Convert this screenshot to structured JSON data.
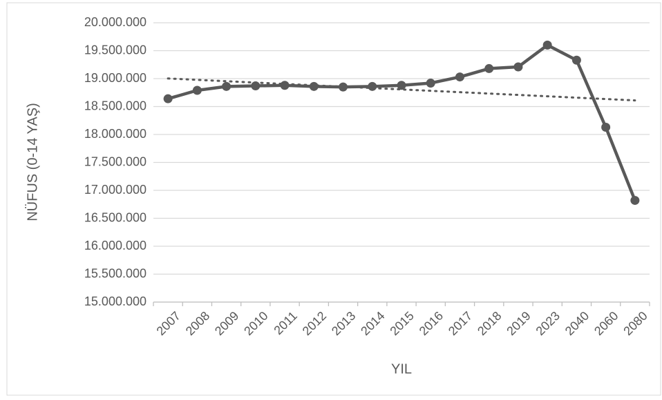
{
  "chart_data": {
    "type": "line",
    "x_label": "YIL",
    "y_label": "NÜFUS (0-14 YAŞ)",
    "categories": [
      "2007",
      "2008",
      "2009",
      "2010",
      "2011",
      "2012",
      "2013",
      "2014",
      "2015",
      "2016",
      "2017",
      "2018",
      "2019",
      "2023",
      "2040",
      "2060",
      "2080"
    ],
    "values": [
      18640000,
      18790000,
      18860000,
      18870000,
      18880000,
      18860000,
      18850000,
      18860000,
      18880000,
      18920000,
      19030000,
      19180000,
      19210000,
      19600000,
      19330000,
      18130000,
      16820000
    ],
    "color": "#595959",
    "trendline": "linear",
    "ylim": [
      15000000,
      20000000
    ],
    "yticks": [
      {
        "value": 15000000,
        "label": "15.000.000"
      },
      {
        "value": 15500000,
        "label": "15.500.000"
      },
      {
        "value": 16000000,
        "label": "16.000.000"
      },
      {
        "value": 16500000,
        "label": "16.500.000"
      },
      {
        "value": 17000000,
        "label": "17.000.000"
      },
      {
        "value": 17500000,
        "label": "17.500.000"
      },
      {
        "value": 18000000,
        "label": "18.000.000"
      },
      {
        "value": 18500000,
        "label": "18.500.000"
      },
      {
        "value": 19000000,
        "label": "19.000.000"
      },
      {
        "value": 19500000,
        "label": "19.500.000"
      },
      {
        "value": 20000000,
        "label": "20.000.000"
      }
    ],
    "grid": true
  }
}
